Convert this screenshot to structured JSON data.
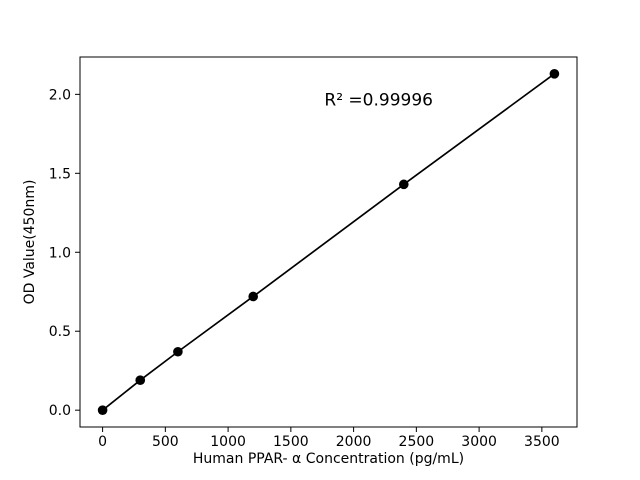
{
  "figure": {
    "background": "#ffffff"
  },
  "chart_data": {
    "type": "line",
    "title": "",
    "xlabel": "Human PPAR- α Concentration (pg/mL)",
    "ylabel": "OD Value(450nm)",
    "x": [
      0,
      300,
      600,
      1200,
      2400,
      3600
    ],
    "y": [
      0.0,
      0.19,
      0.37,
      0.72,
      1.43,
      2.13
    ],
    "xticks": {
      "values": [
        0,
        500,
        1000,
        1500,
        2000,
        2500,
        3000,
        3500
      ],
      "labels": [
        "0",
        "500",
        "1000",
        "1500",
        "2000",
        "2500",
        "3000",
        "3500"
      ]
    },
    "yticks": {
      "values": [
        0.0,
        0.5,
        1.0,
        1.5,
        2.0
      ],
      "labels": [
        "0.0",
        "0.5",
        "1.0",
        "1.5",
        "2.0"
      ]
    },
    "xlim": [
      -180,
      3780
    ],
    "ylim": [
      -0.1065,
      2.2365
    ],
    "annotation": {
      "text": "R² =0.99996",
      "x": 2200,
      "y": 1.93
    },
    "grid": false,
    "legend_position": "none",
    "line_color": "#000000",
    "marker_color": "#000000",
    "axis_color": "#000000"
  }
}
